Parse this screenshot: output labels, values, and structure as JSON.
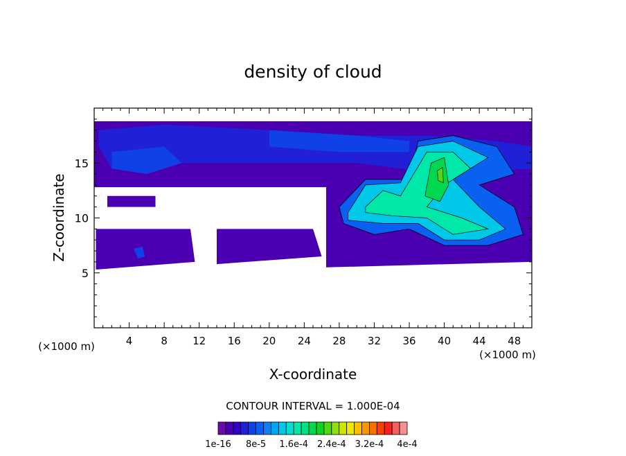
{
  "chart_data": {
    "type": "heatmap",
    "title": "density of cloud",
    "xlabel": "X-coordinate",
    "ylabel": "Z-coordinate",
    "x_unit_left": "(×1000 m)",
    "x_unit_right": "(×1000 m)",
    "xlim": [
      0,
      50
    ],
    "ylim": [
      0,
      20
    ],
    "x_ticks": [
      4,
      8,
      12,
      16,
      20,
      24,
      28,
      32,
      36,
      40,
      44,
      48
    ],
    "y_ticks": [
      5,
      10,
      15
    ],
    "contour_interval_text": "CONTOUR INTERVAL = 1.000E-04",
    "colorbar": {
      "colors": [
        "#6a0aa8",
        "#4a00b0",
        "#3000c8",
        "#2020d8",
        "#1040e8",
        "#0a60f0",
        "#0a80f4",
        "#00a8f0",
        "#00c8e8",
        "#00e0d0",
        "#00e8a8",
        "#00e080",
        "#00d850",
        "#10d020",
        "#50d810",
        "#90e010",
        "#c8e800",
        "#f0e800",
        "#f8c000",
        "#f89800",
        "#f87000",
        "#f84000",
        "#f82020",
        "#f06060",
        "#f89090"
      ],
      "labels": [
        "1e-16",
        "8e-5",
        "1.6e-4",
        "2.4e-4",
        "3.2e-4",
        "4e-4"
      ]
    },
    "regions": [
      {
        "level": 1,
        "polygon": [
          [
            0,
            18.8
          ],
          [
            50,
            18.8
          ],
          [
            50,
            12.8
          ],
          [
            0,
            12.8
          ]
        ]
      },
      {
        "level": 1,
        "polygon": [
          [
            0.2,
            9
          ],
          [
            11,
            9
          ],
          [
            11.5,
            6
          ],
          [
            0.2,
            5.3
          ]
        ]
      },
      {
        "level": 1,
        "polygon": [
          [
            14,
            9
          ],
          [
            25,
            9
          ],
          [
            26,
            6.5
          ],
          [
            14,
            5.8
          ]
        ]
      },
      {
        "level": 1,
        "polygon": [
          [
            26.5,
            12.8
          ],
          [
            33,
            13.2
          ],
          [
            39,
            14.5
          ],
          [
            50,
            13
          ],
          [
            50,
            6
          ],
          [
            26.5,
            5.5
          ]
        ]
      },
      {
        "level": 1,
        "polygon": [
          [
            1.5,
            12
          ],
          [
            7,
            12
          ],
          [
            7,
            11
          ],
          [
            1.5,
            11
          ]
        ]
      },
      {
        "level": 3,
        "polygon": [
          [
            0.5,
            18
          ],
          [
            8,
            18.5
          ],
          [
            20,
            18
          ],
          [
            30,
            17.5
          ],
          [
            38,
            17.5
          ],
          [
            46,
            17
          ],
          [
            50,
            16.5
          ],
          [
            50,
            14.5
          ],
          [
            40,
            14
          ],
          [
            30,
            15
          ],
          [
            20,
            15
          ],
          [
            10,
            15
          ],
          [
            2,
            14.5
          ],
          [
            0.5,
            16.5
          ]
        ]
      },
      {
        "level": 4,
        "polygon": [
          [
            2,
            16
          ],
          [
            8,
            16.5
          ],
          [
            10,
            15
          ],
          [
            6,
            14
          ],
          [
            2,
            14.5
          ]
        ]
      },
      {
        "level": 4,
        "polygon": [
          [
            20,
            18
          ],
          [
            30,
            17.5
          ],
          [
            36,
            17
          ],
          [
            36,
            16
          ],
          [
            28,
            16
          ],
          [
            20,
            16.5
          ]
        ]
      },
      {
        "level": 5,
        "polygon": [
          [
            28,
            11
          ],
          [
            31,
            13.5
          ],
          [
            36,
            13.5
          ],
          [
            37,
            17
          ],
          [
            41,
            17.5
          ],
          [
            46,
            16.5
          ],
          [
            48,
            14
          ],
          [
            44,
            13
          ],
          [
            48,
            11
          ],
          [
            49,
            8.5
          ],
          [
            45,
            7.5
          ],
          [
            40,
            7.5
          ],
          [
            36,
            9
          ],
          [
            32,
            8.5
          ],
          [
            28.5,
            9.5
          ]
        ]
      },
      {
        "level": 8,
        "polygon": [
          [
            29,
            10.5
          ],
          [
            31,
            13
          ],
          [
            35,
            13.2
          ],
          [
            37,
            16.5
          ],
          [
            41,
            17
          ],
          [
            45,
            15.5
          ],
          [
            41,
            13.5
          ],
          [
            44,
            11
          ],
          [
            47,
            9
          ],
          [
            44,
            8
          ],
          [
            40,
            8
          ],
          [
            37,
            9.5
          ],
          [
            33,
            9.5
          ],
          [
            29,
            9.8
          ]
        ]
      },
      {
        "level": 10,
        "polygon": [
          [
            31,
            11
          ],
          [
            33,
            12.5
          ],
          [
            35,
            12
          ],
          [
            38,
            16
          ],
          [
            41,
            16
          ],
          [
            43,
            14.5
          ],
          [
            40,
            13
          ],
          [
            38,
            11
          ],
          [
            42,
            10
          ],
          [
            45,
            9
          ],
          [
            41,
            8.5
          ],
          [
            38,
            10
          ],
          [
            34,
            10.2
          ],
          [
            31,
            10.5
          ]
        ]
      },
      {
        "level": 12,
        "polygon": [
          [
            38.5,
            15
          ],
          [
            40,
            15.5
          ],
          [
            40.5,
            13
          ],
          [
            39.5,
            11.5
          ],
          [
            37.8,
            12
          ]
        ]
      },
      {
        "level": 14,
        "polygon": [
          [
            39.2,
            14.3
          ],
          [
            39.8,
            14.6
          ],
          [
            39.9,
            13.2
          ],
          [
            39.3,
            13.4
          ]
        ]
      },
      {
        "level": 4,
        "polygon": [
          [
            4.5,
            7.2
          ],
          [
            5.5,
            7.4
          ],
          [
            5.8,
            6.5
          ],
          [
            5,
            6.3
          ]
        ]
      }
    ]
  }
}
